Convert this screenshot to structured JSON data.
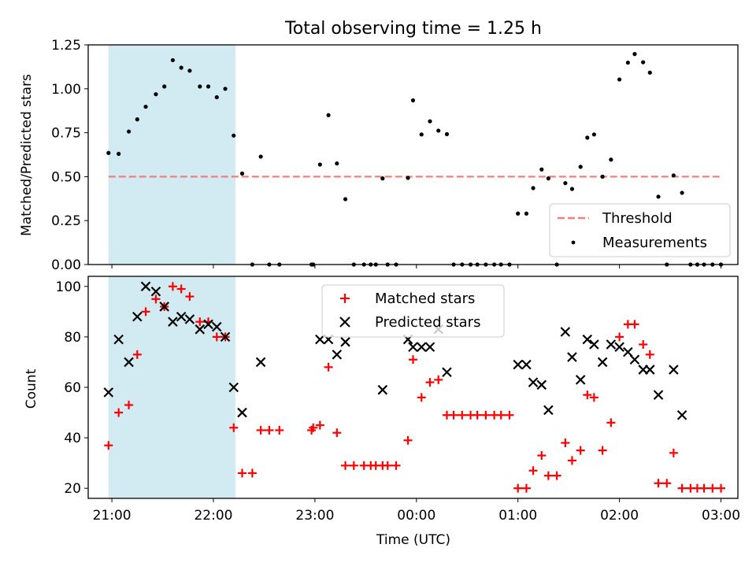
{
  "chart_data": [
    {
      "type": "scatter",
      "title": "Total observing time = 1.25 h",
      "xlabel": "",
      "ylabel": "Matched/Predicted stars",
      "xlim": [
        "20:46",
        "03:10"
      ],
      "ylim": [
        0,
        1.25
      ],
      "yticks": [
        "0.00",
        "0.25",
        "0.50",
        "0.75",
        "1.00",
        "1.25"
      ],
      "xticks": [
        "21:00",
        "22:00",
        "23:00",
        "00:00",
        "01:00",
        "02:00",
        "03:00"
      ],
      "shaded_span": [
        "20:58",
        "22:13"
      ],
      "shaded_color": "#add8e6",
      "legend_position": "lower right",
      "threshold": {
        "name": "Threshold",
        "value": 0.5,
        "x_range": [
          "20:58",
          "03:01"
        ],
        "color": "#f08080"
      },
      "series": [
        {
          "name": "Measurements",
          "color": "#000000",
          "points": [
            [
              "20:58",
              0.635
            ],
            [
              "21:04",
              0.63
            ],
            [
              "21:10",
              0.757
            ],
            [
              "21:15",
              0.826
            ],
            [
              "21:20",
              0.898
            ],
            [
              "21:26",
              0.969
            ],
            [
              "21:31",
              1.013
            ],
            [
              "21:36",
              1.163
            ],
            [
              "21:41",
              1.12
            ],
            [
              "21:46",
              1.103
            ],
            [
              "21:52",
              1.013
            ],
            [
              "21:57",
              1.013
            ],
            [
              "22:02",
              0.952
            ],
            [
              "22:07",
              1.0
            ],
            [
              "22:12",
              0.734
            ],
            [
              "22:17",
              0.518
            ],
            [
              "22:23",
              0.0
            ],
            [
              "22:28",
              0.614
            ],
            [
              "22:33",
              0.0
            ],
            [
              "22:39",
              0.0
            ],
            [
              "22:58",
              0.0
            ],
            [
              "22:59",
              0.0
            ],
            [
              "23:03",
              0.569
            ],
            [
              "23:08",
              0.85
            ],
            [
              "23:13",
              0.575
            ],
            [
              "23:18",
              0.372
            ],
            [
              "23:23",
              0.0
            ],
            [
              "23:29",
              0.0
            ],
            [
              "23:33",
              0.0
            ],
            [
              "23:36",
              0.0
            ],
            [
              "23:40",
              0.49
            ],
            [
              "23:43",
              0.0
            ],
            [
              "23:48",
              0.0
            ],
            [
              "23:55",
              0.493
            ],
            [
              "23:58",
              0.934
            ],
            [
              "00:03",
              0.74
            ],
            [
              "00:08",
              0.815
            ],
            [
              "00:13",
              0.762
            ],
            [
              "00:18",
              0.742
            ],
            [
              "00:22",
              0.0
            ],
            [
              "00:27",
              0.0
            ],
            [
              "00:32",
              0.0
            ],
            [
              "00:36",
              0.0
            ],
            [
              "00:41",
              0.0
            ],
            [
              "00:46",
              0.0
            ],
            [
              "00:50",
              0.0
            ],
            [
              "00:55",
              0.0
            ],
            [
              "01:00",
              0.29
            ],
            [
              "01:05",
              0.29
            ],
            [
              "01:09",
              0.435
            ],
            [
              "01:14",
              0.541
            ],
            [
              "01:18",
              0.49
            ],
            [
              "01:23",
              0.0
            ],
            [
              "01:28",
              0.463
            ],
            [
              "01:32",
              0.43
            ],
            [
              "01:37",
              0.556
            ],
            [
              "01:41",
              0.722
            ],
            [
              "01:45",
              0.74
            ],
            [
              "01:50",
              0.5
            ],
            [
              "01:55",
              0.597
            ],
            [
              "02:00",
              1.053
            ],
            [
              "02:05",
              1.149
            ],
            [
              "02:09",
              1.198
            ],
            [
              "02:14",
              1.151
            ],
            [
              "02:18",
              1.092
            ],
            [
              "02:23",
              0.386
            ],
            [
              "02:28",
              0.0
            ],
            [
              "02:32",
              0.507
            ],
            [
              "02:37",
              0.408
            ],
            [
              "02:42",
              0.0
            ],
            [
              "02:46",
              0.0
            ],
            [
              "02:50",
              0.0
            ],
            [
              "02:55",
              0.0
            ],
            [
              "03:00",
              0.0
            ]
          ]
        }
      ]
    },
    {
      "type": "scatter",
      "title": "",
      "xlabel": "Time (UTC)",
      "ylabel": "Count",
      "xlim": [
        "20:46",
        "03:10"
      ],
      "ylim": [
        16,
        104
      ],
      "yticks": [
        "20",
        "40",
        "60",
        "80",
        "100"
      ],
      "xticks": [
        "21:00",
        "22:00",
        "23:00",
        "00:00",
        "01:00",
        "02:00",
        "03:00"
      ],
      "shaded_span": [
        "20:58",
        "22:13"
      ],
      "shaded_color": "#add8e6",
      "legend_position": "upper center",
      "series": [
        {
          "name": "Matched stars",
          "marker": "+",
          "color": "#ff0000",
          "points": [
            [
              "20:58",
              37
            ],
            [
              "21:04",
              50
            ],
            [
              "21:10",
              53
            ],
            [
              "21:15",
              73
            ],
            [
              "21:20",
              90
            ],
            [
              "21:26",
              95
            ],
            [
              "21:31",
              92
            ],
            [
              "21:36",
              100
            ],
            [
              "21:41",
              99
            ],
            [
              "21:46",
              96
            ],
            [
              "21:52",
              86
            ],
            [
              "21:57",
              86
            ],
            [
              "22:02",
              80
            ],
            [
              "22:07",
              80
            ],
            [
              "22:12",
              44
            ],
            [
              "22:17",
              26
            ],
            [
              "22:23",
              26
            ],
            [
              "22:28",
              43
            ],
            [
              "22:33",
              43
            ],
            [
              "22:39",
              43
            ],
            [
              "22:58",
              43
            ],
            [
              "22:59",
              44
            ],
            [
              "23:03",
              45
            ],
            [
              "23:08",
              68
            ],
            [
              "23:13",
              42
            ],
            [
              "23:18",
              29
            ],
            [
              "23:23",
              29
            ],
            [
              "23:29",
              29
            ],
            [
              "23:33",
              29
            ],
            [
              "23:36",
              29
            ],
            [
              "23:40",
              29
            ],
            [
              "23:43",
              29
            ],
            [
              "23:48",
              29
            ],
            [
              "23:55",
              39
            ],
            [
              "23:58",
              71
            ],
            [
              "00:03",
              56
            ],
            [
              "00:08",
              62
            ],
            [
              "00:13",
              63
            ],
            [
              "00:18",
              49
            ],
            [
              "00:22",
              49
            ],
            [
              "00:27",
              49
            ],
            [
              "00:32",
              49
            ],
            [
              "00:36",
              49
            ],
            [
              "00:41",
              49
            ],
            [
              "00:46",
              49
            ],
            [
              "00:50",
              49
            ],
            [
              "00:55",
              49
            ],
            [
              "01:00",
              20
            ],
            [
              "01:05",
              20
            ],
            [
              "01:09",
              27
            ],
            [
              "01:14",
              33
            ],
            [
              "01:18",
              25
            ],
            [
              "01:23",
              25
            ],
            [
              "01:28",
              38
            ],
            [
              "01:32",
              31
            ],
            [
              "01:37",
              35
            ],
            [
              "01:41",
              57
            ],
            [
              "01:45",
              56
            ],
            [
              "01:50",
              35
            ],
            [
              "01:55",
              46
            ],
            [
              "02:00",
              80
            ],
            [
              "02:05",
              85
            ],
            [
              "02:09",
              85
            ],
            [
              "02:14",
              77
            ],
            [
              "02:18",
              73
            ],
            [
              "02:23",
              22
            ],
            [
              "02:28",
              22
            ],
            [
              "02:32",
              34
            ],
            [
              "02:37",
              20
            ],
            [
              "02:42",
              20
            ],
            [
              "02:46",
              20
            ],
            [
              "02:50",
              20
            ],
            [
              "02:55",
              20
            ],
            [
              "03:00",
              20
            ]
          ]
        },
        {
          "name": "Predicted stars",
          "marker": "x",
          "color": "#000000",
          "points": [
            [
              "20:58",
              58
            ],
            [
              "21:04",
              79
            ],
            [
              "21:10",
              70
            ],
            [
              "21:15",
              88
            ],
            [
              "21:20",
              100
            ],
            [
              "21:26",
              98
            ],
            [
              "21:31",
              92
            ],
            [
              "21:36",
              86
            ],
            [
              "21:41",
              88
            ],
            [
              "21:46",
              87
            ],
            [
              "21:52",
              83
            ],
            [
              "21:57",
              85
            ],
            [
              "22:02",
              84
            ],
            [
              "22:07",
              80
            ],
            [
              "22:12",
              60
            ],
            [
              "22:17",
              50
            ],
            [
              "22:28",
              70
            ],
            [
              "23:03",
              79
            ],
            [
              "23:08",
              79
            ],
            [
              "23:13",
              73
            ],
            [
              "23:18",
              78
            ],
            [
              "23:40",
              59
            ],
            [
              "23:55",
              79
            ],
            [
              "23:58",
              76
            ],
            [
              "00:03",
              76
            ],
            [
              "00:08",
              76
            ],
            [
              "00:13",
              83
            ],
            [
              "00:18",
              66
            ],
            [
              "01:00",
              69
            ],
            [
              "01:05",
              69
            ],
            [
              "01:09",
              62
            ],
            [
              "01:14",
              61
            ],
            [
              "01:18",
              51
            ],
            [
              "01:28",
              82
            ],
            [
              "01:32",
              72
            ],
            [
              "01:37",
              63
            ],
            [
              "01:41",
              79
            ],
            [
              "01:45",
              77
            ],
            [
              "01:50",
              70
            ],
            [
              "01:55",
              77
            ],
            [
              "02:00",
              76
            ],
            [
              "02:05",
              74
            ],
            [
              "02:09",
              71
            ],
            [
              "02:14",
              67
            ],
            [
              "02:18",
              67
            ],
            [
              "02:23",
              57
            ],
            [
              "02:32",
              67
            ],
            [
              "02:37",
              49
            ]
          ]
        }
      ]
    }
  ]
}
